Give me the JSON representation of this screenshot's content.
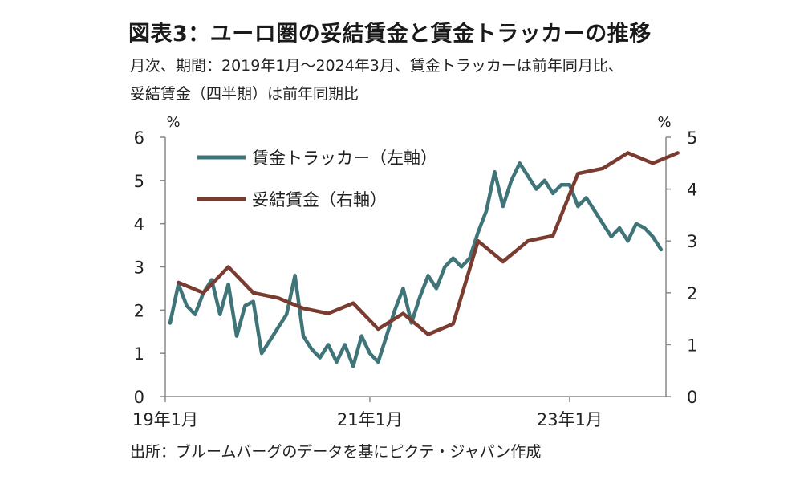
{
  "title": "図表3：ユーロ圏の妥結賃金と賃金トラッカーの推移",
  "subtitle_line1": "月次、期間：2019年1月～2024年3月、賃金トラッカーは前年同月比、",
  "subtitle_line2": "妥結賃金（四半期）は前年同期比",
  "source": "出所：ブルームバーグのデータを基にピクテ・ジャパン作成",
  "colors": {
    "tracker": "#3f7479",
    "negotiated": "#7a3b31",
    "axis": "#888888"
  },
  "chart_data": {
    "type": "line",
    "left_unit": "%",
    "right_unit": "%",
    "left_ylim": [
      0,
      6
    ],
    "right_ylim": [
      0,
      5
    ],
    "left_ticks": [
      "0",
      "1",
      "2",
      "3",
      "4",
      "5",
      "6"
    ],
    "right_ticks": [
      "0",
      "1",
      "2",
      "3",
      "4",
      "5"
    ],
    "x_ticks": [
      {
        "label": "19年1月",
        "index": 0
      },
      {
        "label": "21年1月",
        "index": 24
      },
      {
        "label": "23年1月",
        "index": 48
      }
    ],
    "grid": false,
    "legend_placement": "top-left",
    "series": [
      {
        "name": "賃金トラッカー（左軸）",
        "axis": "left",
        "frequency": "monthly",
        "start": "2019-01",
        "values": [
          1.7,
          2.6,
          2.1,
          1.9,
          2.4,
          2.7,
          1.9,
          2.6,
          1.4,
          2.1,
          2.2,
          1.0,
          1.3,
          1.6,
          1.9,
          2.8,
          1.4,
          1.1,
          0.9,
          1.2,
          0.8,
          1.2,
          0.7,
          1.4,
          1.0,
          0.8,
          1.4,
          2.0,
          2.5,
          1.7,
          2.3,
          2.8,
          2.5,
          3.0,
          3.2,
          3.0,
          3.2,
          3.8,
          4.3,
          5.2,
          4.4,
          5.0,
          5.4,
          5.1,
          4.8,
          5.0,
          4.7,
          4.9,
          4.9,
          4.4,
          4.6,
          4.3,
          4.0,
          3.7,
          3.9,
          3.6,
          4.0,
          3.9,
          3.7,
          3.4
        ]
      },
      {
        "name": "妥結賃金（右軸）",
        "axis": "right",
        "frequency": "quarterly",
        "x_index": [
          1,
          4,
          7,
          10,
          13,
          16,
          19,
          22,
          25,
          28,
          31,
          34,
          37,
          40,
          43,
          46,
          49,
          52,
          55,
          58,
          61
        ],
        "values": [
          2.2,
          2.0,
          2.5,
          2.0,
          1.9,
          1.7,
          1.6,
          1.8,
          1.3,
          1.6,
          1.2,
          1.4,
          3.0,
          2.6,
          3.0,
          3.1,
          4.3,
          4.4,
          4.7,
          4.5,
          4.7
        ]
      }
    ]
  }
}
